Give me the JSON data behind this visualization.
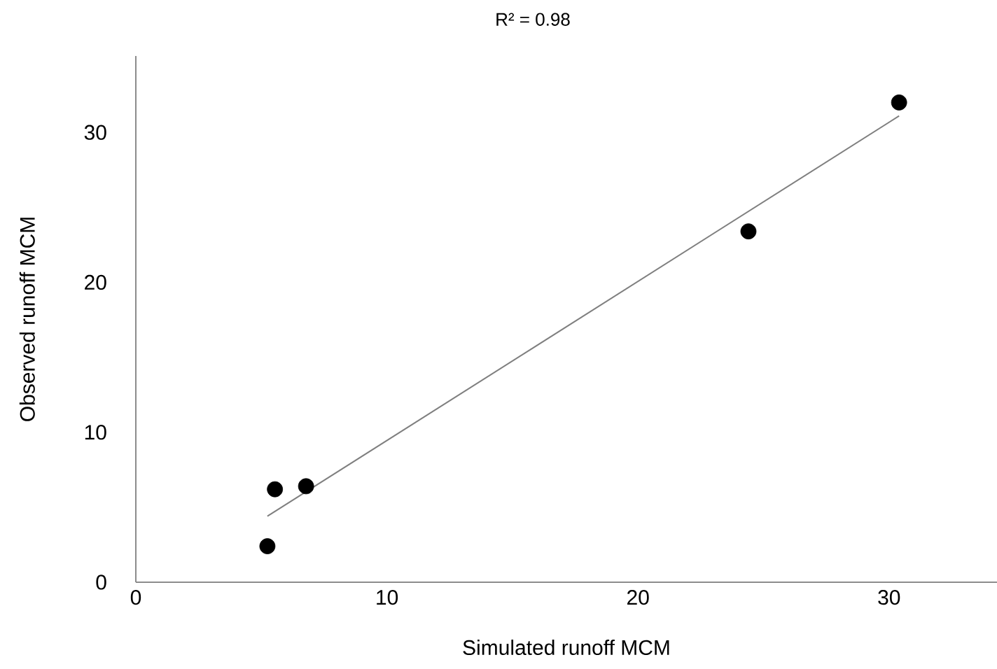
{
  "chart_data": {
    "type": "scatter",
    "title": "R² = 0.98",
    "xlabel": "Simulated runoff MCM",
    "ylabel": "Observed runoff MCM",
    "xlim": [
      0,
      34.3
    ],
    "ylim": [
      0,
      35.1
    ],
    "xticks": [
      0,
      10,
      20,
      30
    ],
    "yticks": [
      0,
      10,
      20,
      30
    ],
    "grid": false,
    "series": [
      {
        "color": "#000000",
        "marker": "circle",
        "x": [
          5.24,
          5.54,
          6.78,
          24.4,
          30.4
        ],
        "values": [
          2.4,
          6.2,
          6.4,
          23.4,
          32.0
        ]
      },
      {
        "type": "line",
        "color": "#7f7f7f",
        "marker": "none",
        "line_style": "solid",
        "x": [
          5.24,
          30.4
        ],
        "values": [
          4.4,
          31.1
        ]
      }
    ]
  }
}
